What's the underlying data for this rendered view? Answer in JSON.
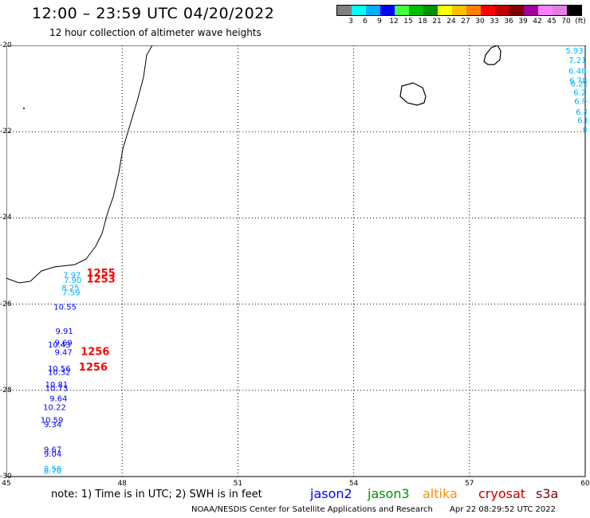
{
  "title": "12:00 – 23:59 UTC 04/20/2022",
  "subtitle": "12 hour collection of altimeter wave heights",
  "scale": {
    "colors": [
      "#7f7f7f",
      "#00ffff",
      "#00b0ff",
      "#0000ff",
      "#40ff40",
      "#00c000",
      "#009000",
      "#ffff00",
      "#ffc000",
      "#ff8000",
      "#ff0000",
      "#c00000",
      "#800000",
      "#a000a0",
      "#ff80ff",
      "#e080e0",
      "#000000"
    ],
    "labels": [
      "3",
      "6",
      "9",
      "12",
      "15",
      "18",
      "21",
      "24",
      "27",
      "30",
      "33",
      "36",
      "39",
      "42",
      "45",
      "70",
      "(ft)"
    ]
  },
  "axes": {
    "lat_labels": [
      "-20",
      "-22",
      "-24",
      "-26",
      "-28",
      "-30"
    ],
    "lon_labels": [
      "45",
      "48",
      "51",
      "54",
      "57",
      "60"
    ]
  },
  "observations": [
    {
      "text": "5.93",
      "lon": 59.72,
      "lat": -20.13,
      "color": "#00b0ff"
    },
    {
      "text": "7.21",
      "lon": 59.8,
      "lat": -20.35,
      "color": "#00b0ff"
    },
    {
      "text": "6.48",
      "lon": 59.8,
      "lat": -20.6,
      "color": "#00b0ff"
    },
    {
      "text": "6.78",
      "lon": 59.82,
      "lat": -20.82,
      "color": "#00b0ff"
    },
    {
      "text": "6.29",
      "lon": 59.85,
      "lat": -20.9,
      "color": "#00b0ff"
    },
    {
      "text": "6.2",
      "lon": 59.86,
      "lat": -21.1,
      "color": "#00b0ff"
    },
    {
      "text": "6.9",
      "lon": 59.88,
      "lat": -21.3,
      "color": "#00b0ff"
    },
    {
      "text": "6.4",
      "lon": 59.92,
      "lat": -21.55,
      "color": "#00b0ff"
    },
    {
      "text": "6.8",
      "lon": 59.96,
      "lat": -21.75,
      "color": "#00b0ff"
    },
    {
      "text": "6",
      "lon": 60.0,
      "lat": -21.95,
      "color": "#00b0ff"
    },
    {
      "text": "7.97",
      "lon": 46.7,
      "lat": -25.33,
      "color": "#00b0ff"
    },
    {
      "text": "7.90",
      "lon": 46.72,
      "lat": -25.45,
      "color": "#00b0ff"
    },
    {
      "text": "8.25",
      "lon": 46.66,
      "lat": -25.63,
      "color": "#00b0ff"
    },
    {
      "text": "7.59",
      "lon": 46.68,
      "lat": -25.74,
      "color": "#00b0ff"
    },
    {
      "text": "10.55",
      "lon": 46.52,
      "lat": -26.07,
      "color": "#0000ff"
    },
    {
      "text": "9.91",
      "lon": 46.5,
      "lat": -26.64,
      "color": "#0000ff"
    },
    {
      "text": "9.69",
      "lon": 46.48,
      "lat": -26.9,
      "color": "#0000ff"
    },
    {
      "text": "10.43",
      "lon": 46.37,
      "lat": -26.95,
      "color": "#0000ff"
    },
    {
      "text": "9.47",
      "lon": 46.48,
      "lat": -27.13,
      "color": "#0000ff"
    },
    {
      "text": "10.56",
      "lon": 46.37,
      "lat": -27.5,
      "color": "#0000ff"
    },
    {
      "text": "10.32",
      "lon": 46.37,
      "lat": -27.59,
      "color": "#0000ff"
    },
    {
      "text": "10.81",
      "lon": 46.3,
      "lat": -27.87,
      "color": "#0000ff"
    },
    {
      "text": "10.73",
      "lon": 46.3,
      "lat": -27.96,
      "color": "#0000ff"
    },
    {
      "text": "9.64",
      "lon": 46.35,
      "lat": -28.2,
      "color": "#0000ff"
    },
    {
      "text": "10.22",
      "lon": 46.25,
      "lat": -28.4,
      "color": "#0000ff"
    },
    {
      "text": "10.59",
      "lon": 46.18,
      "lat": -28.7,
      "color": "#0000ff"
    },
    {
      "text": "9.34",
      "lon": 46.2,
      "lat": -28.8,
      "color": "#0000ff"
    },
    {
      "text": "9.67",
      "lon": 46.2,
      "lat": -29.38,
      "color": "#0000ff"
    },
    {
      "text": "9.04",
      "lon": 46.2,
      "lat": -29.48,
      "color": "#0000ff"
    },
    {
      "text": "8.56",
      "lon": 46.2,
      "lat": -29.82,
      "color": "#00b0ff"
    },
    {
      "text": "8.70",
      "lon": 46.2,
      "lat": -29.88,
      "color": "#00b0ff"
    }
  ],
  "passes": [
    {
      "text": "1255",
      "lon": 47.45,
      "lat": -25.3,
      "color": "#ff0000"
    },
    {
      "text": "1253",
      "lon": 47.45,
      "lat": -25.43,
      "color": "#ff0000"
    },
    {
      "text": "1256",
      "lon": 47.3,
      "lat": -27.12,
      "color": "#ff0000"
    },
    {
      "text": "1256",
      "lon": 47.25,
      "lat": -27.48,
      "color": "#ff0000"
    }
  ],
  "note": "note:  1) Time is in UTC;  2) SWH is in feet",
  "satellites": [
    {
      "name": "jason2",
      "color": "#0000ff"
    },
    {
      "name": "jason3",
      "color": "#009000"
    },
    {
      "name": "altika",
      "color": "#ff9000"
    },
    {
      "name": "cryosat",
      "color": "#c00000"
    },
    {
      "name": "s3a",
      "color": "#800000"
    }
  ],
  "footer": {
    "credit": "NOAA/NESDIS Center for Satellite Applications and Research",
    "timestamp": "Apr 22 08:29:52 UTC 2022"
  }
}
